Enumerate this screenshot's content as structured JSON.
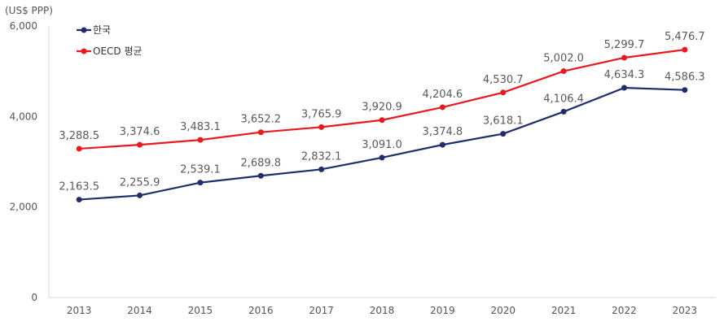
{
  "chart_data": {
    "type": "line",
    "unit_label": "(US$ PPP)",
    "categories": [
      "2013",
      "2014",
      "2015",
      "2016",
      "2017",
      "2018",
      "2019",
      "2020",
      "2021",
      "2022",
      "2023"
    ],
    "series": [
      {
        "name": "한국",
        "color": "#1f2d6b",
        "values": [
          2163.5,
          2255.9,
          2539.1,
          2689.8,
          2832.1,
          3091.0,
          3374.8,
          3618.1,
          4106.4,
          4634.3,
          4586.3
        ],
        "labels": [
          "2,163.5",
          "2,255.9",
          "2,539.1",
          "2,689.8",
          "2,832.1",
          "3,091.0",
          "3,374.8",
          "3,618.1",
          "4,106.4",
          "4,634.3",
          "4,586.3"
        ]
      },
      {
        "name": "OECD 평균",
        "color": "#e8191f",
        "values": [
          3288.5,
          3374.6,
          3483.1,
          3652.2,
          3765.9,
          3920.9,
          4204.6,
          4530.7,
          5002.0,
          5299.7,
          5476.7
        ],
        "labels": [
          "3,288.5",
          "3,374.6",
          "3,483.1",
          "3,652.2",
          "3,765.9",
          "3,920.9",
          "4,204.6",
          "4,530.7",
          "5,002.0",
          "5,299.7",
          "5,476.7"
        ]
      }
    ],
    "ylim": [
      0,
      6000
    ],
    "yticks": [
      0,
      2000,
      4000,
      6000
    ],
    "ytick_labels": [
      "0",
      "2,000",
      "4,000",
      "6,000"
    ],
    "legend_position": "top-left",
    "grid": false
  }
}
